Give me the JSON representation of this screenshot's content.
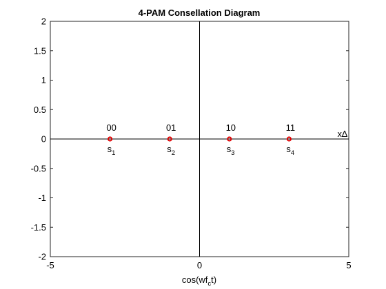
{
  "chart_data": {
    "type": "scatter",
    "title": "4-PAM Consellation Diagram",
    "xlabel": {
      "main": "cos(wf",
      "sub": "c",
      "tail": "t)"
    },
    "ylabel": "",
    "xlim": [
      -5,
      5
    ],
    "ylim": [
      -2,
      2
    ],
    "grid": false,
    "x_ticks": [
      -5,
      0,
      5
    ],
    "x_tick_labels": [
      "-5",
      "0",
      "5"
    ],
    "y_ticks": [
      2,
      1.5,
      1,
      0.5,
      0,
      -0.5,
      -1,
      -1.5,
      -2
    ],
    "y_tick_labels": [
      "2",
      "1.5",
      "1",
      "0.5",
      "0",
      "-0.5",
      "-1",
      "-1.5",
      "-2"
    ],
    "points": [
      {
        "x": -3,
        "y": 0,
        "bits": "00",
        "symbol": "s",
        "index": "1"
      },
      {
        "x": -1,
        "y": 0,
        "bits": "01",
        "symbol": "s",
        "index": "2"
      },
      {
        "x": 1,
        "y": 0,
        "bits": "10",
        "symbol": "s",
        "index": "3"
      },
      {
        "x": 3,
        "y": 0,
        "bits": "11",
        "symbol": "s",
        "index": "4"
      }
    ],
    "axis_annotation": "x∆",
    "marker_color": "#e00000",
    "axis_color": "#000000"
  }
}
